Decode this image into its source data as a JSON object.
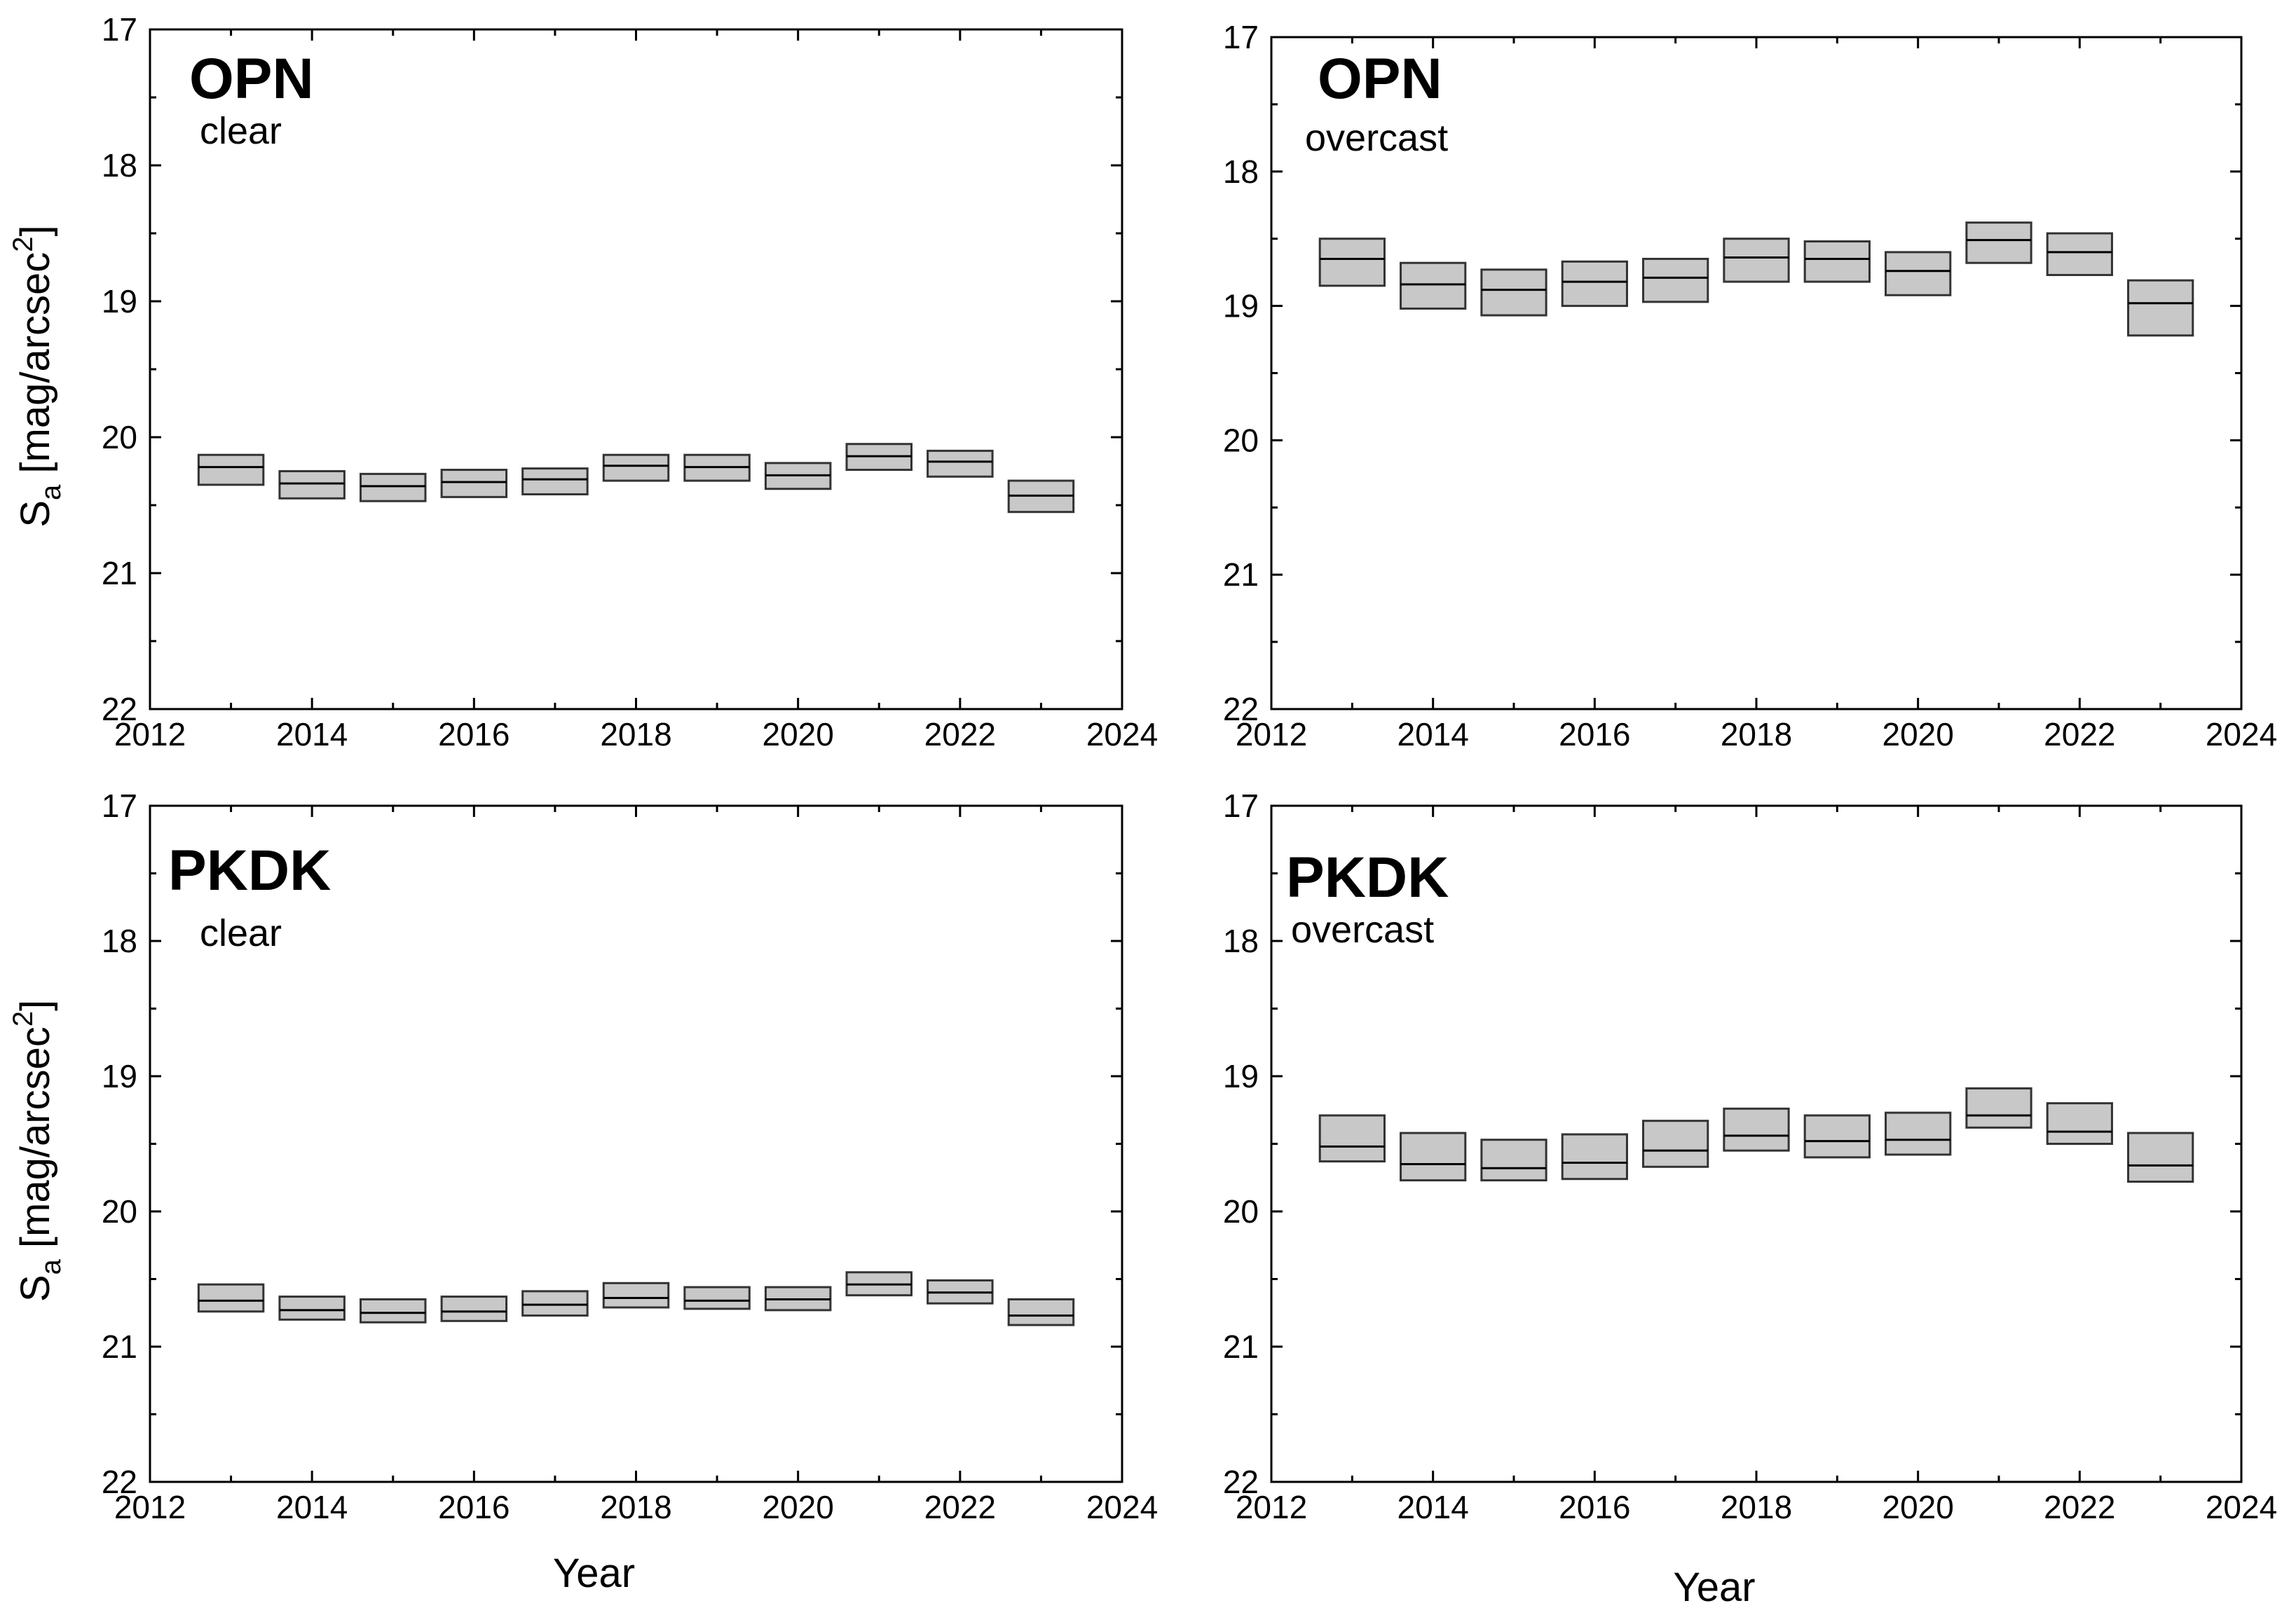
{
  "chart_data": [
    {
      "type": "box",
      "station": "OPN",
      "condition": "clear",
      "xlabel": "",
      "ylabel": "S",
      "ylabel_sub": "a",
      "ylabel_unit": "[mag/arcsec",
      "ylabel_sup": "2",
      "ylabel_close": "]",
      "xlim": [
        2012,
        2024
      ],
      "ylim": [
        17,
        22
      ],
      "y_inverted": true,
      "xticks": [
        "2012",
        "2014",
        "2016",
        "2018",
        "2020",
        "2022",
        "2024"
      ],
      "yticks": [
        "17",
        "18",
        "19",
        "20",
        "21",
        "22"
      ],
      "boxes": [
        {
          "year": 2013,
          "low": 20.13,
          "median": 20.22,
          "high": 20.35
        },
        {
          "year": 2014,
          "low": 20.25,
          "median": 20.34,
          "high": 20.45
        },
        {
          "year": 2015,
          "low": 20.27,
          "median": 20.36,
          "high": 20.47
        },
        {
          "year": 2016,
          "low": 20.24,
          "median": 20.33,
          "high": 20.44
        },
        {
          "year": 2017,
          "low": 20.23,
          "median": 20.31,
          "high": 20.42
        },
        {
          "year": 2018,
          "low": 20.13,
          "median": 20.21,
          "high": 20.32
        },
        {
          "year": 2019,
          "low": 20.13,
          "median": 20.22,
          "high": 20.32
        },
        {
          "year": 2020,
          "low": 20.19,
          "median": 20.28,
          "high": 20.38
        },
        {
          "year": 2021,
          "low": 20.05,
          "median": 20.14,
          "high": 20.24
        },
        {
          "year": 2022,
          "low": 20.1,
          "median": 20.18,
          "high": 20.29
        },
        {
          "year": 2023,
          "low": 20.32,
          "median": 20.43,
          "high": 20.55
        }
      ]
    },
    {
      "type": "box",
      "station": "OPN",
      "condition": "overcast",
      "xlabel": "",
      "ylabel": "",
      "xlim": [
        2012,
        2024
      ],
      "ylim": [
        17,
        22
      ],
      "y_inverted": true,
      "xticks": [
        "2012",
        "2014",
        "2016",
        "2018",
        "2020",
        "2022",
        "2024"
      ],
      "yticks": [
        "17",
        "18",
        "19",
        "20",
        "21",
        "22"
      ],
      "boxes": [
        {
          "year": 2013,
          "low": 18.5,
          "median": 18.65,
          "high": 18.85
        },
        {
          "year": 2014,
          "low": 18.68,
          "median": 18.84,
          "high": 19.02
        },
        {
          "year": 2015,
          "low": 18.73,
          "median": 18.88,
          "high": 19.07
        },
        {
          "year": 2016,
          "low": 18.67,
          "median": 18.82,
          "high": 19.0
        },
        {
          "year": 2017,
          "low": 18.65,
          "median": 18.79,
          "high": 18.97
        },
        {
          "year": 2018,
          "low": 18.5,
          "median": 18.64,
          "high": 18.82
        },
        {
          "year": 2019,
          "low": 18.52,
          "median": 18.65,
          "high": 18.82
        },
        {
          "year": 2020,
          "low": 18.6,
          "median": 18.74,
          "high": 18.92
        },
        {
          "year": 2021,
          "low": 18.38,
          "median": 18.51,
          "high": 18.68
        },
        {
          "year": 2022,
          "low": 18.46,
          "median": 18.6,
          "high": 18.77
        },
        {
          "year": 2023,
          "low": 18.81,
          "median": 18.98,
          "high": 19.22
        }
      ]
    },
    {
      "type": "box",
      "station": "PKDK",
      "condition": "clear",
      "xlabel": "Year",
      "ylabel": "S",
      "ylabel_sub": "a",
      "ylabel_unit": "[mag/arcsec",
      "ylabel_sup": "2",
      "ylabel_close": "]",
      "xlim": [
        2012,
        2024
      ],
      "ylim": [
        17,
        22
      ],
      "y_inverted": true,
      "xticks": [
        "2012",
        "2014",
        "2016",
        "2018",
        "2020",
        "2022",
        "2024"
      ],
      "yticks": [
        "17",
        "18",
        "19",
        "20",
        "21",
        "22"
      ],
      "boxes": [
        {
          "year": 2013,
          "low": 20.54,
          "median": 20.66,
          "high": 20.74
        },
        {
          "year": 2014,
          "low": 20.63,
          "median": 20.73,
          "high": 20.8
        },
        {
          "year": 2015,
          "low": 20.65,
          "median": 20.75,
          "high": 20.82
        },
        {
          "year": 2016,
          "low": 20.63,
          "median": 20.74,
          "high": 20.81
        },
        {
          "year": 2017,
          "low": 20.59,
          "median": 20.69,
          "high": 20.77
        },
        {
          "year": 2018,
          "low": 20.53,
          "median": 20.64,
          "high": 20.71
        },
        {
          "year": 2019,
          "low": 20.56,
          "median": 20.66,
          "high": 20.72
        },
        {
          "year": 2020,
          "low": 20.56,
          "median": 20.65,
          "high": 20.73
        },
        {
          "year": 2021,
          "low": 20.45,
          "median": 20.54,
          "high": 20.62
        },
        {
          "year": 2022,
          "low": 20.51,
          "median": 20.6,
          "high": 20.68
        },
        {
          "year": 2023,
          "low": 20.65,
          "median": 20.77,
          "high": 20.84
        }
      ]
    },
    {
      "type": "box",
      "station": "PKDK",
      "condition": "overcast",
      "xlabel": "Year",
      "ylabel": "",
      "xlim": [
        2012,
        2024
      ],
      "ylim": [
        17,
        22
      ],
      "y_inverted": true,
      "xticks": [
        "2012",
        "2014",
        "2016",
        "2018",
        "2020",
        "2022",
        "2024"
      ],
      "yticks": [
        "17",
        "18",
        "19",
        "20",
        "21",
        "22"
      ],
      "boxes": [
        {
          "year": 2013,
          "low": 19.29,
          "median": 19.52,
          "high": 19.63
        },
        {
          "year": 2014,
          "low": 19.42,
          "median": 19.65,
          "high": 19.77
        },
        {
          "year": 2015,
          "low": 19.47,
          "median": 19.68,
          "high": 19.77
        },
        {
          "year": 2016,
          "low": 19.43,
          "median": 19.64,
          "high": 19.76
        },
        {
          "year": 2017,
          "low": 19.33,
          "median": 19.55,
          "high": 19.67
        },
        {
          "year": 2018,
          "low": 19.24,
          "median": 19.44,
          "high": 19.55
        },
        {
          "year": 2019,
          "low": 19.29,
          "median": 19.48,
          "high": 19.6
        },
        {
          "year": 2020,
          "low": 19.27,
          "median": 19.47,
          "high": 19.58
        },
        {
          "year": 2021,
          "low": 19.09,
          "median": 19.29,
          "high": 19.38
        },
        {
          "year": 2022,
          "low": 19.2,
          "median": 19.41,
          "high": 19.5
        },
        {
          "year": 2023,
          "low": 19.42,
          "median": 19.66,
          "high": 19.78
        }
      ]
    }
  ]
}
